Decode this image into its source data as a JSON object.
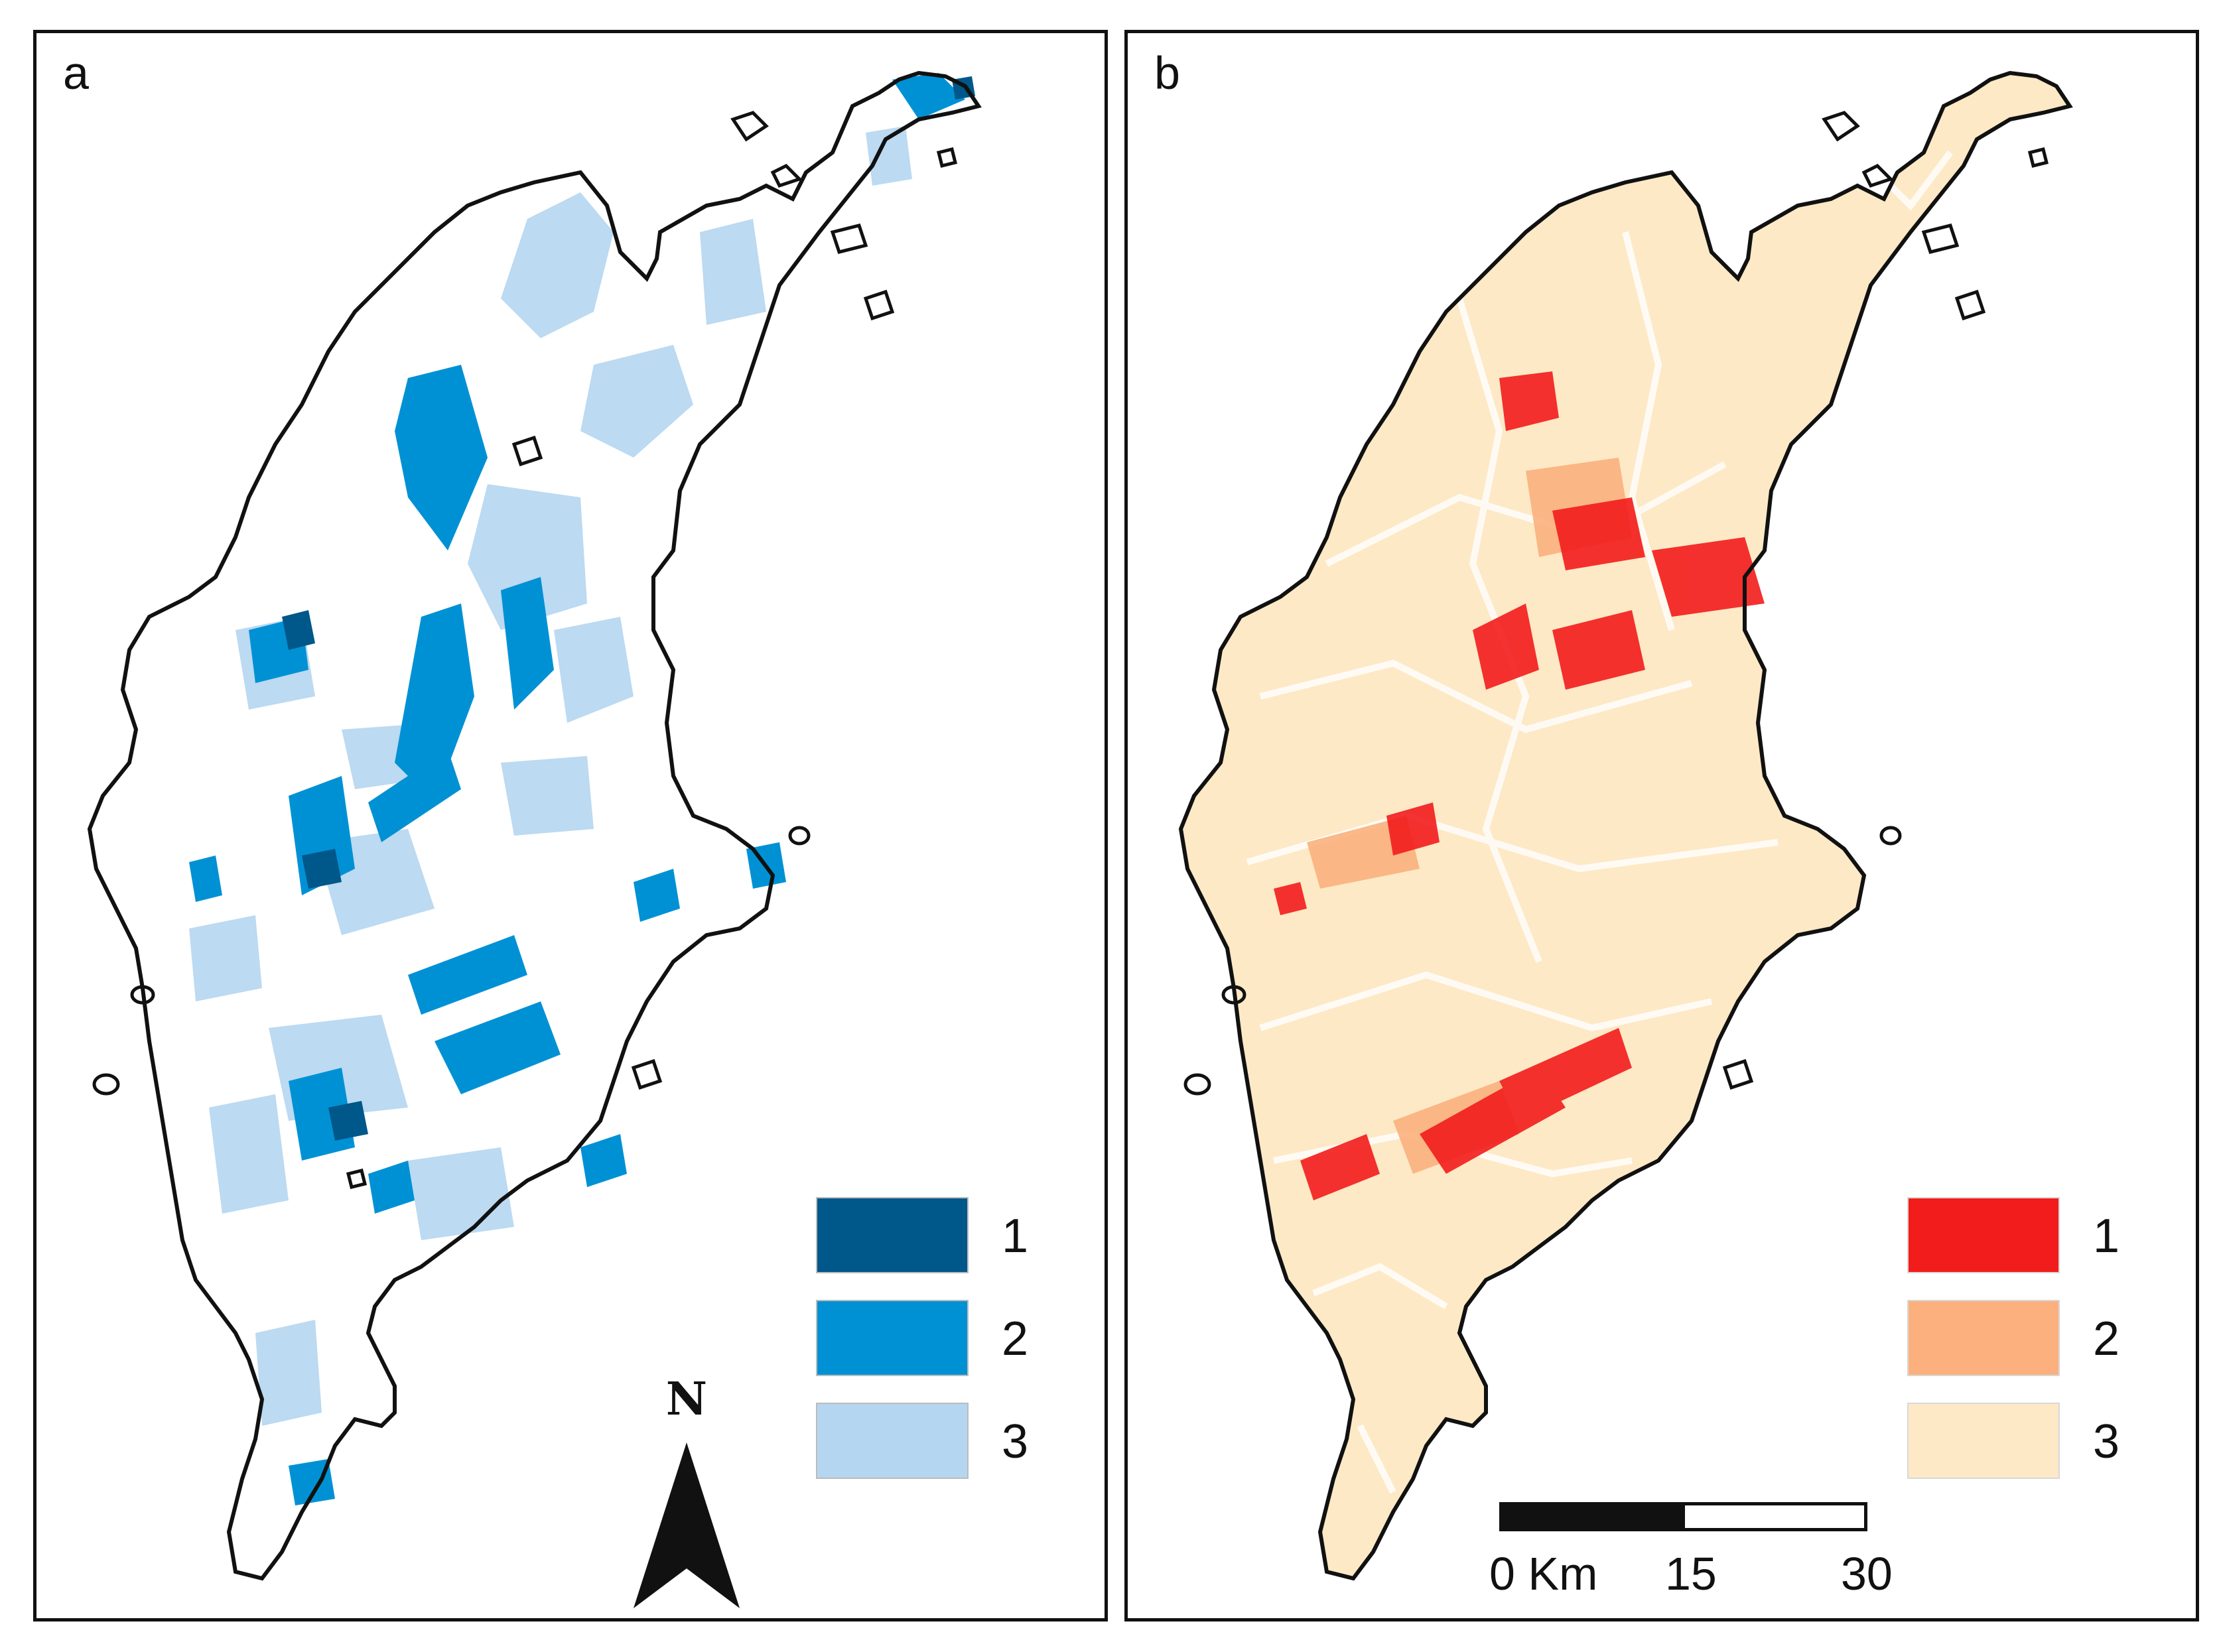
{
  "panels": [
    {
      "label": "a",
      "palette": "blue",
      "legend": [
        {
          "label": "1",
          "color": "#00578a"
        },
        {
          "label": "2",
          "color": "#0091d5"
        },
        {
          "label": "3",
          "color": "#b5d6f0"
        }
      ]
    },
    {
      "label": "b",
      "palette": "red",
      "legend": [
        {
          "label": "1",
          "color": "#f21c1c"
        },
        {
          "label": "2",
          "color": "#fbb07d"
        },
        {
          "label": "3",
          "color": "#fde9c6"
        }
      ]
    }
  ],
  "north_arrow": {
    "label": "N",
    "icon": "north-arrow-icon"
  },
  "scale_bar": {
    "ticks": [
      "0 Km",
      "15",
      "30"
    ],
    "unit": "Km"
  },
  "colors": {
    "outline": "#111111",
    "background": "#ffffff"
  }
}
